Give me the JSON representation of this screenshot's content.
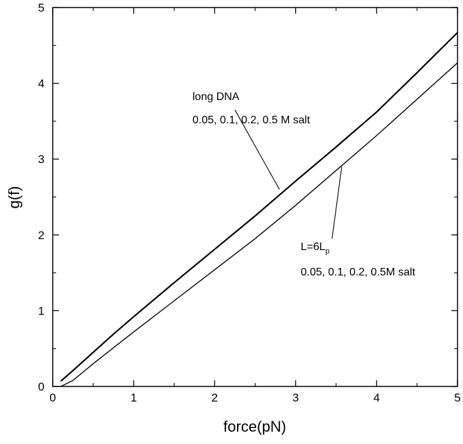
{
  "chart_data": {
    "type": "line",
    "title": "",
    "xlabel": "force(pN)",
    "ylabel": "g(f)",
    "xlim": [
      0,
      5
    ],
    "ylim": [
      0,
      5
    ],
    "xticks": [
      "0",
      "1",
      "2",
      "3",
      "4",
      "5"
    ],
    "yticks": [
      "0",
      "1",
      "2",
      "3",
      "4",
      "5"
    ],
    "grid": false,
    "legend": "none",
    "series": [
      {
        "x": [
          0.1,
          0.25,
          0.5,
          0.75,
          1.0,
          1.5,
          2.0,
          2.5,
          3.0,
          3.5,
          4.0,
          4.5,
          5.0
        ],
        "y": [
          0.07,
          0.21,
          0.45,
          0.69,
          0.92,
          1.37,
          1.81,
          2.25,
          2.71,
          3.16,
          3.62,
          4.14,
          4.67
        ]
      },
      {
        "x": [
          0.1,
          0.25,
          0.5,
          0.75,
          1.0,
          1.5,
          2.0,
          2.5,
          3.0,
          3.5,
          4.0,
          4.5,
          5.0
        ],
        "y": [
          0.0,
          0.08,
          0.3,
          0.51,
          0.72,
          1.13,
          1.54,
          1.95,
          2.39,
          2.85,
          3.31,
          3.79,
          4.27
        ]
      }
    ],
    "annotations": [
      {
        "lines": [
          "long DNA",
          "0.05, 0.1, 0.2, 0.5 M salt"
        ],
        "arrow_from": [
          2.25,
          3.65
        ],
        "arrow_to": [
          2.8,
          2.6
        ]
      },
      {
        "main": "L=6L",
        "subscript": "p",
        "line2": "0.05, 0.1, 0.2, 0.5M salt",
        "arrow_from": [
          3.45,
          1.95
        ],
        "arrow_to": [
          3.57,
          2.9
        ]
      }
    ]
  }
}
